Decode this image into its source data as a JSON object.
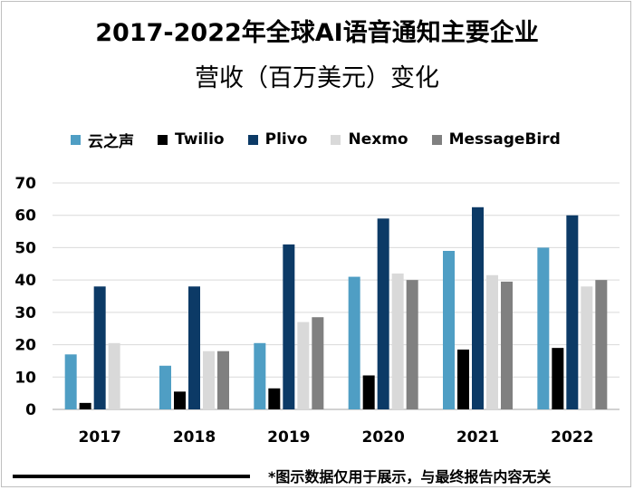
{
  "title_line1": "2017-2022年全球AI语音通知主要企业",
  "title_line2": "营收（百万美元）变化",
  "footnote": "*图示数据仅用于展示，与最终报告内容无关",
  "chart_data": {
    "type": "bar",
    "categories": [
      "2017",
      "2018",
      "2019",
      "2020",
      "2021",
      "2022"
    ],
    "ylim": [
      0,
      70
    ],
    "yticks": [
      0,
      10,
      20,
      30,
      40,
      50,
      60,
      70
    ],
    "grid": true,
    "legend_position": "top",
    "series": [
      {
        "name": "云之声",
        "color": "#4f9ec4",
        "values": [
          17,
          13.5,
          20.5,
          41,
          49,
          50
        ]
      },
      {
        "name": "Twilio",
        "color": "#000000",
        "values": [
          2,
          5.5,
          6.5,
          10.5,
          18.5,
          19
        ]
      },
      {
        "name": "Plivo",
        "color": "#0c3a66",
        "values": [
          38,
          38,
          51,
          59,
          62.5,
          60
        ]
      },
      {
        "name": "Nexmo",
        "color": "#d9d9d9",
        "values": [
          20.5,
          18,
          27,
          42,
          41.5,
          38
        ]
      },
      {
        "name": "MessageBird",
        "color": "#808080",
        "values": [
          null,
          18,
          28.5,
          40,
          39.5,
          40
        ]
      }
    ]
  }
}
